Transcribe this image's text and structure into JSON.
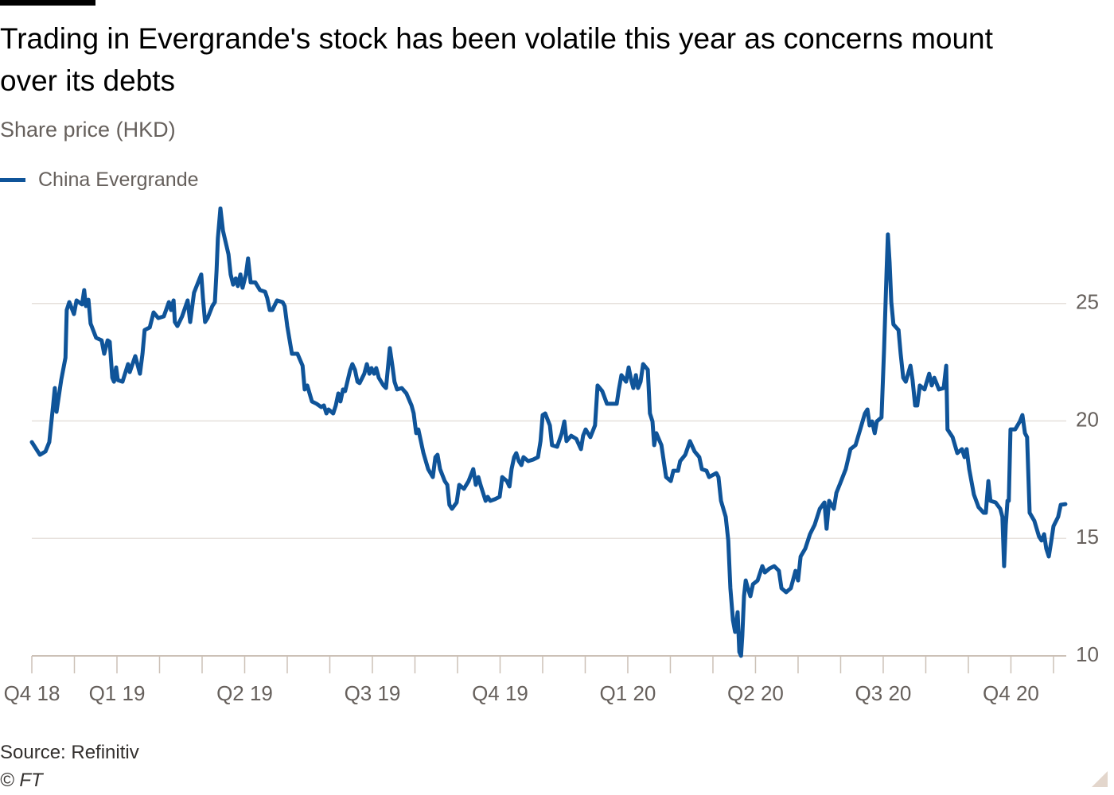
{
  "chart_data": {
    "type": "line",
    "title": "Trading in Evergrande's stock has been volatile this year as concerns mount over its debts",
    "subtitle": "Share price (HKD)",
    "source": "Source: Refinitiv",
    "credit": "© FT",
    "grid": true,
    "xlim": [
      0,
      24.3
    ],
    "xticks": [
      {
        "value": 0,
        "label": "Q4 18"
      },
      {
        "value": 2,
        "label": "Q1 19"
      },
      {
        "value": 5,
        "label": "Q2 19"
      },
      {
        "value": 8,
        "label": "Q3 19"
      },
      {
        "value": 11,
        "label": "Q4 19"
      },
      {
        "value": 14,
        "label": "Q1 20"
      },
      {
        "value": 17,
        "label": "Q2 20"
      },
      {
        "value": 20,
        "label": "Q3 20"
      },
      {
        "value": 23,
        "label": "Q4 20"
      }
    ],
    "xminorticks": [
      1,
      3,
      4,
      6,
      7,
      9,
      10,
      12,
      13,
      15,
      16,
      18,
      19,
      21,
      22,
      24
    ],
    "ylim": [
      10,
      30
    ],
    "yticks": [
      10,
      15,
      20,
      25
    ],
    "x": [
      0,
      0.19,
      0.32,
      0.41,
      0.5,
      0.54,
      0.58,
      0.69,
      0.79,
      0.82,
      0.88,
      0.99,
      1.05,
      1.18,
      1.23,
      1.27,
      1.33,
      1.38,
      1.51,
      1.64,
      1.7,
      1.78,
      1.83,
      1.89,
      1.93,
      1.98,
      2.02,
      2.13,
      2.26,
      2.3,
      2.43,
      2.54,
      2.6,
      2.65,
      2.77,
      2.86,
      2.97,
      3.1,
      3.22,
      3.27,
      3.33,
      3.36,
      3.42,
      3.53,
      3.66,
      3.72,
      3.81,
      3.93,
      3.98,
      4.02,
      4.07,
      4.13,
      4.24,
      4.3,
      4.34,
      4.37,
      4.43,
      4.49,
      4.62,
      4.67,
      4.73,
      4.79,
      4.84,
      4.9,
      4.95,
      5.03,
      5.08,
      5.14,
      5.25,
      5.36,
      5.48,
      5.53,
      5.59,
      5.65,
      5.76,
      5.89,
      5.94,
      6,
      6.11,
      6.24,
      6.36,
      6.41,
      6.47,
      6.58,
      6.69,
      6.8,
      6.86,
      6.92,
      6.97,
      7.08,
      7.14,
      7.2,
      7.25,
      7.31,
      7.36,
      7.48,
      7.53,
      7.59,
      7.65,
      7.7,
      7.81,
      7.87,
      7.93,
      7.98,
      8.04,
      8.09,
      8.15,
      8.26,
      8.32,
      8.37,
      8.41,
      8.47,
      8.52,
      8.58,
      8.69,
      8.8,
      8.92,
      8.97,
      9.03,
      9.08,
      9.2,
      9.31,
      9.42,
      9.48,
      9.53,
      9.59,
      9.7,
      9.76,
      9.81,
      9.87,
      9.98,
      10.04,
      10.15,
      10.26,
      10.37,
      10.43,
      10.49,
      10.54,
      10.66,
      10.71,
      10.77,
      10.88,
      10.99,
      11.05,
      11.16,
      11.22,
      11.27,
      11.33,
      11.38,
      11.44,
      11.5,
      11.55,
      11.66,
      11.78,
      11.89,
      11.95,
      12,
      12.06,
      12.17,
      12.22,
      12.34,
      12.45,
      12.51,
      12.56,
      12.67,
      12.79,
      12.9,
      12.95,
      13.01,
      13.12,
      13.23,
      13.29,
      13.4,
      13.51,
      13.63,
      13.74,
      13.79,
      13.85,
      13.96,
      14.02,
      14.08,
      14.13,
      14.19,
      14.24,
      14.3,
      14.36,
      14.47,
      14.52,
      14.58,
      14.62,
      14.67,
      14.79,
      14.9,
      15.01,
      15.07,
      15.18,
      15.23,
      15.35,
      15.46,
      15.57,
      15.68,
      15.74,
      15.85,
      15.91,
      16.08,
      16.13,
      16.19,
      16.3,
      16.36,
      16.41,
      16.47,
      16.52,
      16.58,
      16.62,
      16.66,
      16.69,
      16.73,
      16.77,
      16.82,
      16.88,
      16.94,
      17.05,
      17.16,
      17.22,
      17.33,
      17.44,
      17.55,
      17.61,
      17.72,
      17.83,
      17.94,
      18,
      18.06,
      18.17,
      18.28,
      18.39,
      18.51,
      18.62,
      18.67,
      18.73,
      18.84,
      18.9,
      19.01,
      19.12,
      19.23,
      19.35,
      19.46,
      19.57,
      19.63,
      19.68,
      19.74,
      19.8,
      19.85,
      19.96,
      20.02,
      20.08,
      20.11,
      20.15,
      20.19,
      20.24,
      20.36,
      20.41,
      20.47,
      20.53,
      20.64,
      20.69,
      20.75,
      20.8,
      20.86,
      20.97,
      21.08,
      21.14,
      21.2,
      21.31,
      21.42,
      21.48,
      21.51,
      21.63,
      21.74,
      21.85,
      21.91,
      21.96,
      22.02,
      22.13,
      22.24,
      22.36,
      22.41,
      22.47,
      22.52,
      22.64,
      22.75,
      22.8,
      22.84,
      22.88,
      22.92,
      22.95,
      22.99,
      23.1,
      23.21,
      23.27,
      23.33,
      23.38,
      23.44,
      23.55,
      23.66,
      23.72,
      23.78,
      23.83,
      23.89,
      23.95,
      24,
      24.11,
      24.17,
      24.28
    ],
    "series": [
      {
        "name": "China Evergrande",
        "color": "#0f5499",
        "values": [
          19.1,
          18.56,
          18.7,
          19.1,
          20.66,
          21.4,
          20.39,
          21.74,
          22.69,
          24.72,
          25.06,
          24.55,
          25.13,
          24.96,
          25.57,
          24.89,
          25.16,
          24.15,
          23.54,
          23.43,
          22.86,
          23.43,
          23.37,
          21.84,
          21.67,
          22.28,
          21.74,
          21.67,
          22.42,
          22.08,
          22.76,
          22.01,
          22.86,
          23.87,
          23.98,
          24.62,
          24.38,
          24.45,
          25.06,
          24.72,
          25.13,
          24.21,
          24.04,
          24.45,
          25.13,
          24.21,
          25.46,
          26.01,
          26.24,
          25.23,
          24.21,
          24.38,
          24.89,
          25.06,
          26.41,
          27.77,
          29.05,
          28.1,
          27.09,
          26.24,
          25.8,
          26.07,
          25.74,
          26.24,
          25.67,
          26.24,
          26.92,
          25.9,
          25.9,
          25.57,
          25.5,
          25.23,
          24.72,
          24.72,
          25.13,
          25.06,
          24.89,
          24.04,
          22.86,
          22.86,
          22.35,
          21.34,
          21.51,
          20.83,
          20.73,
          20.59,
          20.66,
          20.32,
          20.49,
          20.32,
          20.66,
          21.17,
          20.83,
          21.34,
          21.27,
          22.18,
          22.42,
          22.18,
          21.67,
          21.61,
          22.01,
          22.42,
          22.01,
          22.25,
          22.01,
          22.25,
          21.84,
          21.51,
          21.4,
          22.35,
          23.1,
          22.35,
          21.67,
          21.34,
          21.4,
          21.17,
          20.66,
          20.32,
          19.48,
          19.64,
          18.63,
          17.95,
          17.61,
          18.46,
          18.56,
          17.95,
          17.44,
          17.28,
          16.43,
          16.26,
          16.53,
          17.28,
          17.11,
          17.44,
          17.95,
          17.28,
          17.61,
          17.28,
          16.6,
          16.77,
          16.6,
          16.67,
          16.77,
          17.61,
          17.44,
          17.21,
          17.95,
          18.46,
          18.63,
          18.29,
          18.12,
          18.46,
          18.29,
          18.36,
          18.46,
          19.14,
          20.25,
          20.32,
          19.81,
          18.97,
          18.9,
          19.48,
          19.98,
          19.14,
          19.37,
          19.24,
          18.8,
          19.37,
          19.64,
          19.31,
          19.81,
          21.51,
          21.27,
          20.73,
          20.73,
          20.73,
          21.34,
          21.95,
          21.67,
          22.28,
          21.74,
          21.4,
          21.95,
          21.4,
          21.67,
          22.42,
          22.18,
          20.32,
          19.98,
          18.97,
          19.48,
          18.97,
          17.61,
          17.44,
          17.88,
          17.88,
          18.29,
          18.56,
          19.14,
          18.7,
          18.46,
          17.95,
          17.88,
          17.61,
          17.78,
          17.61,
          16.6,
          15.92,
          14.91,
          12.88,
          11.52,
          11.02,
          11.86,
          10.17,
          10,
          10.85,
          12.54,
          13.21,
          12.88,
          12.54,
          13.05,
          13.21,
          13.82,
          13.55,
          13.72,
          13.82,
          13.62,
          12.88,
          12.71,
          12.88,
          13.62,
          13.21,
          14.23,
          14.57,
          15.18,
          15.58,
          16.26,
          16.53,
          15.41,
          16.6,
          16.26,
          16.94,
          17.44,
          17.95,
          18.8,
          18.97,
          19.64,
          20.32,
          20.49,
          19.81,
          19.98,
          19.48,
          19.98,
          20.15,
          23.03,
          26.41,
          27.94,
          26.75,
          25.06,
          24.11,
          23.87,
          22.86,
          21.84,
          21.67,
          22.35,
          21.74,
          20.66,
          20.66,
          21.51,
          21.34,
          22.01,
          21.51,
          21.84,
          21.34,
          21.4,
          22.35,
          19.64,
          19.31,
          18.63,
          18.8,
          18.46,
          18.8,
          17.95,
          16.87,
          16.33,
          16.09,
          16.09,
          17.44,
          16.6,
          16.53,
          16.26,
          15.92,
          13.82,
          15.58,
          16.6,
          16.6,
          19.64,
          19.64,
          19.98,
          20.25,
          19.48,
          19.31,
          16.09,
          15.75,
          15.08,
          14.91,
          15.18,
          14.57,
          14.23,
          14.91,
          15.52,
          15.92,
          16.43,
          16.46
        ]
      }
    ]
  }
}
